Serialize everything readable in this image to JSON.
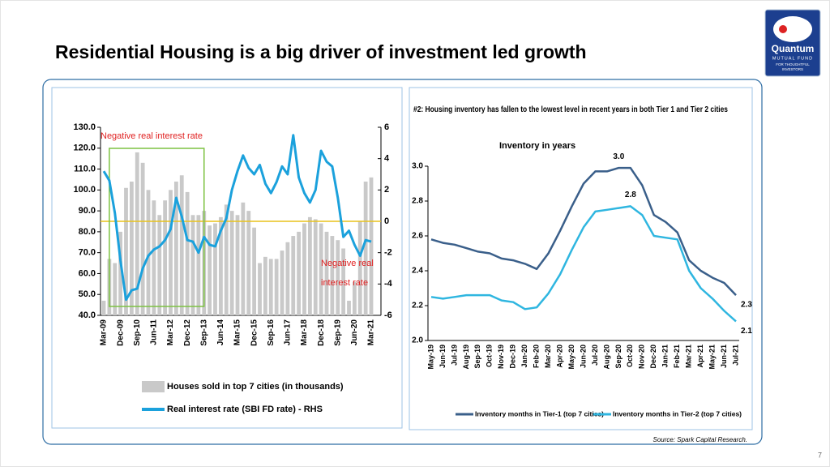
{
  "title": "Residential Housing is a big driver of investment led growth",
  "logo": {
    "name": "Quantum",
    "line1": "MUTUAL FUND",
    "line2": "FOR THOUGHTFUL",
    "line3": "INVESTORS"
  },
  "source": "Source: Spark Capital Research.",
  "page_number": "7",
  "chart_data": [
    {
      "type": "combo",
      "annotations": [
        "Negative real interest rate",
        "Negative real",
        "interest rate"
      ],
      "categories": [
        "Mar-09",
        null,
        null,
        "Dec-09",
        null,
        null,
        "Sep-10",
        null,
        null,
        "Jun-11",
        null,
        null,
        "Mar-12",
        null,
        null,
        "Dec-12",
        null,
        null,
        "Sep-13",
        null,
        null,
        "Jun-14",
        null,
        null,
        "Mar-15",
        null,
        null,
        "Dec-15",
        null,
        null,
        "Sep-16",
        null,
        null,
        "Jun-17",
        null,
        null,
        "Mar-18",
        null,
        null,
        "Dec-18",
        null,
        null,
        "Sep-19",
        null,
        null,
        "Jun-20",
        null,
        null,
        "Mar-21"
      ],
      "series": [
        {
          "name": "Houses sold in top 7 cities (in thousands)",
          "type": "bar",
          "color": "#c9c9c9",
          "values": [
            47,
            67,
            65,
            80,
            101,
            104,
            118,
            113,
            100,
            95,
            88,
            95,
            100,
            104,
            107,
            99,
            88,
            88,
            90,
            83,
            84,
            87,
            93,
            90,
            88,
            94,
            90,
            82,
            65,
            68,
            67,
            67,
            71,
            75,
            78,
            80,
            84,
            87,
            86,
            84,
            80,
            78,
            76,
            72,
            47,
            56,
            85,
            104,
            106
          ]
        },
        {
          "name": "Real interest rate (SBI FD rate) - RHS",
          "type": "line",
          "color": "#1ba1dc",
          "axis": "y2",
          "values": [
            3.2,
            2.6,
            0.5,
            -2.5,
            -5.0,
            -4.4,
            -4.3,
            -3.0,
            -2.2,
            -1.8,
            -1.6,
            -1.2,
            -0.5,
            1.5,
            0.3,
            -1.2,
            -1.3,
            -2.0,
            -1.0,
            -1.5,
            -1.6,
            -0.6,
            0.2,
            2.0,
            3.2,
            4.2,
            3.4,
            3.0,
            3.6,
            2.4,
            1.8,
            2.5,
            3.5,
            3.0,
            5.5,
            2.8,
            1.8,
            1.2,
            2.0,
            4.5,
            3.8,
            3.5,
            1.5,
            -1.0,
            -0.6,
            -1.5,
            -2.2,
            -1.2,
            -1.3
          ]
        }
      ],
      "ylim": [
        40,
        130
      ],
      "yticks": [
        {
          "value": 40,
          "label": "40.0"
        },
        {
          "value": 50,
          "label": "50.0"
        },
        {
          "value": 60,
          "label": "60.0"
        },
        {
          "value": 70,
          "label": "70.0"
        },
        {
          "value": 80,
          "label": "80.0"
        },
        {
          "value": 90,
          "label": "90.0"
        },
        {
          "value": 100,
          "label": "100.0"
        },
        {
          "value": 110,
          "label": "110.0"
        },
        {
          "value": 120,
          "label": "120.0"
        },
        {
          "value": 130,
          "label": "130.0"
        }
      ],
      "y2lim": [
        -6,
        6
      ],
      "y2ticks": [
        -6,
        -4,
        -2,
        0,
        2,
        4,
        6
      ],
      "zero_line_color": "#e8c21c"
    },
    {
      "type": "line",
      "title": "#2: Housing inventory has fallen to the lowest level in recent years in both Tier 1 and Tier 2 cities",
      "subtitle": "Inventory in years",
      "categories": [
        "May-19",
        "Jun-19",
        "Jul-19",
        "Aug-19",
        "Sep-19",
        "Oct-19",
        "Nov-19",
        "Dec-19",
        "Jan-20",
        "Feb-20",
        "Mar-20",
        "Apr-20",
        "May-20",
        "Jun-20",
        "Jul-20",
        "Aug-20",
        "Sep-20",
        "Oct-20",
        "Nov-20",
        "Dec-20",
        "Jan-21",
        "Feb-21",
        "Mar-21",
        "Apr-21",
        "May-21",
        "Jun-21",
        "Jul-21"
      ],
      "series": [
        {
          "name": "Inventory months in Tier-1 (top 7 cities)",
          "color": "#3a5f8a",
          "values": [
            2.58,
            2.56,
            2.55,
            2.53,
            2.51,
            2.5,
            2.47,
            2.46,
            2.44,
            2.41,
            2.5,
            2.63,
            2.77,
            2.9,
            2.97,
            2.97,
            2.99,
            2.99,
            2.89,
            2.72,
            2.68,
            2.62,
            2.46,
            2.4,
            2.36,
            2.33,
            2.26
          ],
          "value_labels": [
            null,
            null,
            null,
            null,
            null,
            null,
            null,
            null,
            null,
            null,
            null,
            null,
            null,
            null,
            null,
            null,
            "3.0",
            null,
            null,
            null,
            null,
            null,
            null,
            null,
            null,
            null,
            "2.3"
          ]
        },
        {
          "name": "Inventory months in Tier-2 (top 7 cities)",
          "color": "#2fb6e0",
          "values": [
            2.25,
            2.24,
            2.25,
            2.26,
            2.26,
            2.26,
            2.23,
            2.22,
            2.18,
            2.19,
            2.27,
            2.38,
            2.52,
            2.65,
            2.74,
            2.75,
            2.76,
            2.77,
            2.72,
            2.6,
            2.59,
            2.58,
            2.4,
            2.3,
            2.24,
            2.17,
            2.11
          ],
          "value_labels": [
            null,
            null,
            null,
            null,
            null,
            null,
            null,
            null,
            null,
            null,
            null,
            null,
            null,
            null,
            null,
            null,
            null,
            "2.8",
            null,
            null,
            null,
            null,
            null,
            null,
            null,
            null,
            "2.1"
          ]
        }
      ],
      "ylim": [
        2.0,
        3.0
      ],
      "yticks": [
        {
          "value": 2.0,
          "label": "2.0"
        },
        {
          "value": 2.2,
          "label": "2.2"
        },
        {
          "value": 2.4,
          "label": "2.4"
        },
        {
          "value": 2.6,
          "label": "2.6"
        },
        {
          "value": 2.8,
          "label": "2.8"
        },
        {
          "value": 3.0,
          "label": "3.0"
        }
      ]
    }
  ]
}
